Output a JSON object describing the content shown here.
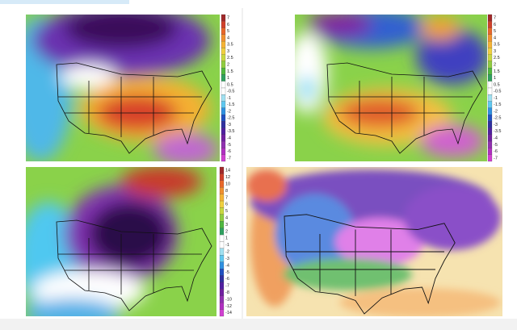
{
  "colorbars": [
    {
      "labels": [
        "7",
        "6",
        "5",
        "4",
        "3.5",
        "3",
        "2.5",
        "2",
        "1.5",
        "1",
        "0.5",
        "-0.5",
        "-1",
        "-1.5",
        "-2",
        "-2.5",
        "-3",
        "-3.5",
        "-4",
        "-5",
        "-6",
        "-7"
      ]
    },
    {
      "labels": [
        "7",
        "6",
        "5",
        "4",
        "3.5",
        "3",
        "2.5",
        "2",
        "1.5",
        "1",
        "0.5",
        "-0.5",
        "-1",
        "-1.5",
        "-2",
        "-2.5",
        "-3",
        "-3.5",
        "-4",
        "-5",
        "-6",
        "-7"
      ]
    },
    {
      "labels": [
        "14",
        "12",
        "10",
        "8",
        "7",
        "6",
        "5",
        "4",
        "3",
        "2",
        "1",
        "-1",
        "-2",
        "-3",
        "-4",
        "-5",
        "-6",
        "-7",
        "-8",
        "-10",
        "-12",
        "-14"
      ]
    }
  ]
}
